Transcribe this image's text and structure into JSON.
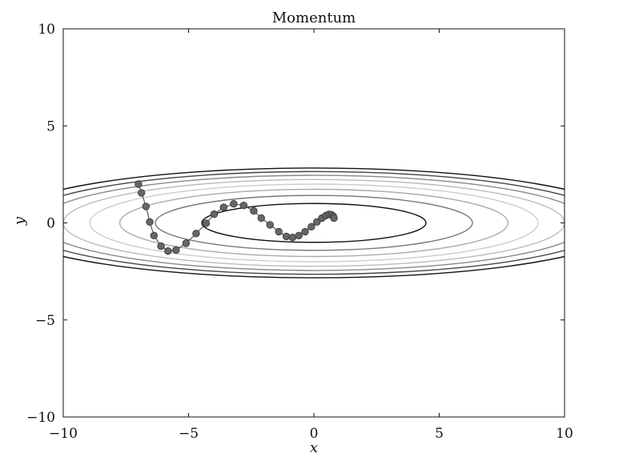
{
  "chart_data": {
    "type": "line",
    "title": "Momentum",
    "xlabel": "x",
    "ylabel": "y",
    "xlim": [
      -10,
      10
    ],
    "ylim": [
      -10,
      10
    ],
    "xticks": [
      -10,
      -5,
      0,
      5,
      10
    ],
    "yticks": [
      -10,
      -5,
      0,
      5,
      10
    ],
    "grid": false,
    "contour_function": "f(x, y) = x^2/20 + y^2",
    "contour_levels": [
      {
        "level": 1,
        "color": "#111111"
      },
      {
        "level": 2,
        "color": "#777777"
      },
      {
        "level": 3,
        "color": "#aaaaaa"
      },
      {
        "level": 4,
        "color": "#cccccc"
      },
      {
        "level": 5,
        "color": "#bbbbbb"
      },
      {
        "level": 6,
        "color": "#888888"
      },
      {
        "level": 7,
        "color": "#444444"
      },
      {
        "level": 8,
        "color": "#111111"
      }
    ],
    "series": [
      {
        "marker_color": "#666666",
        "line_color": "#555555",
        "x": [
          -7.0,
          -6.88,
          -6.7,
          -6.55,
          -6.38,
          -6.1,
          -5.82,
          -5.5,
          -5.1,
          -4.7,
          -4.3,
          -3.98,
          -3.6,
          -3.2,
          -2.8,
          -2.4,
          -2.1,
          -1.75,
          -1.4,
          -1.1,
          -0.85,
          -0.6,
          -0.35,
          -0.1,
          0.12,
          0.32,
          0.48,
          0.6,
          0.7,
          0.77,
          0.8
        ],
        "y": [
          2.0,
          1.55,
          0.85,
          0.05,
          -0.65,
          -1.2,
          -1.45,
          -1.4,
          -1.05,
          -0.55,
          -0.02,
          0.45,
          0.8,
          0.98,
          0.9,
          0.62,
          0.25,
          -0.1,
          -0.45,
          -0.7,
          -0.75,
          -0.65,
          -0.45,
          -0.2,
          0.05,
          0.25,
          0.38,
          0.44,
          0.42,
          0.35,
          0.25
        ]
      }
    ]
  }
}
